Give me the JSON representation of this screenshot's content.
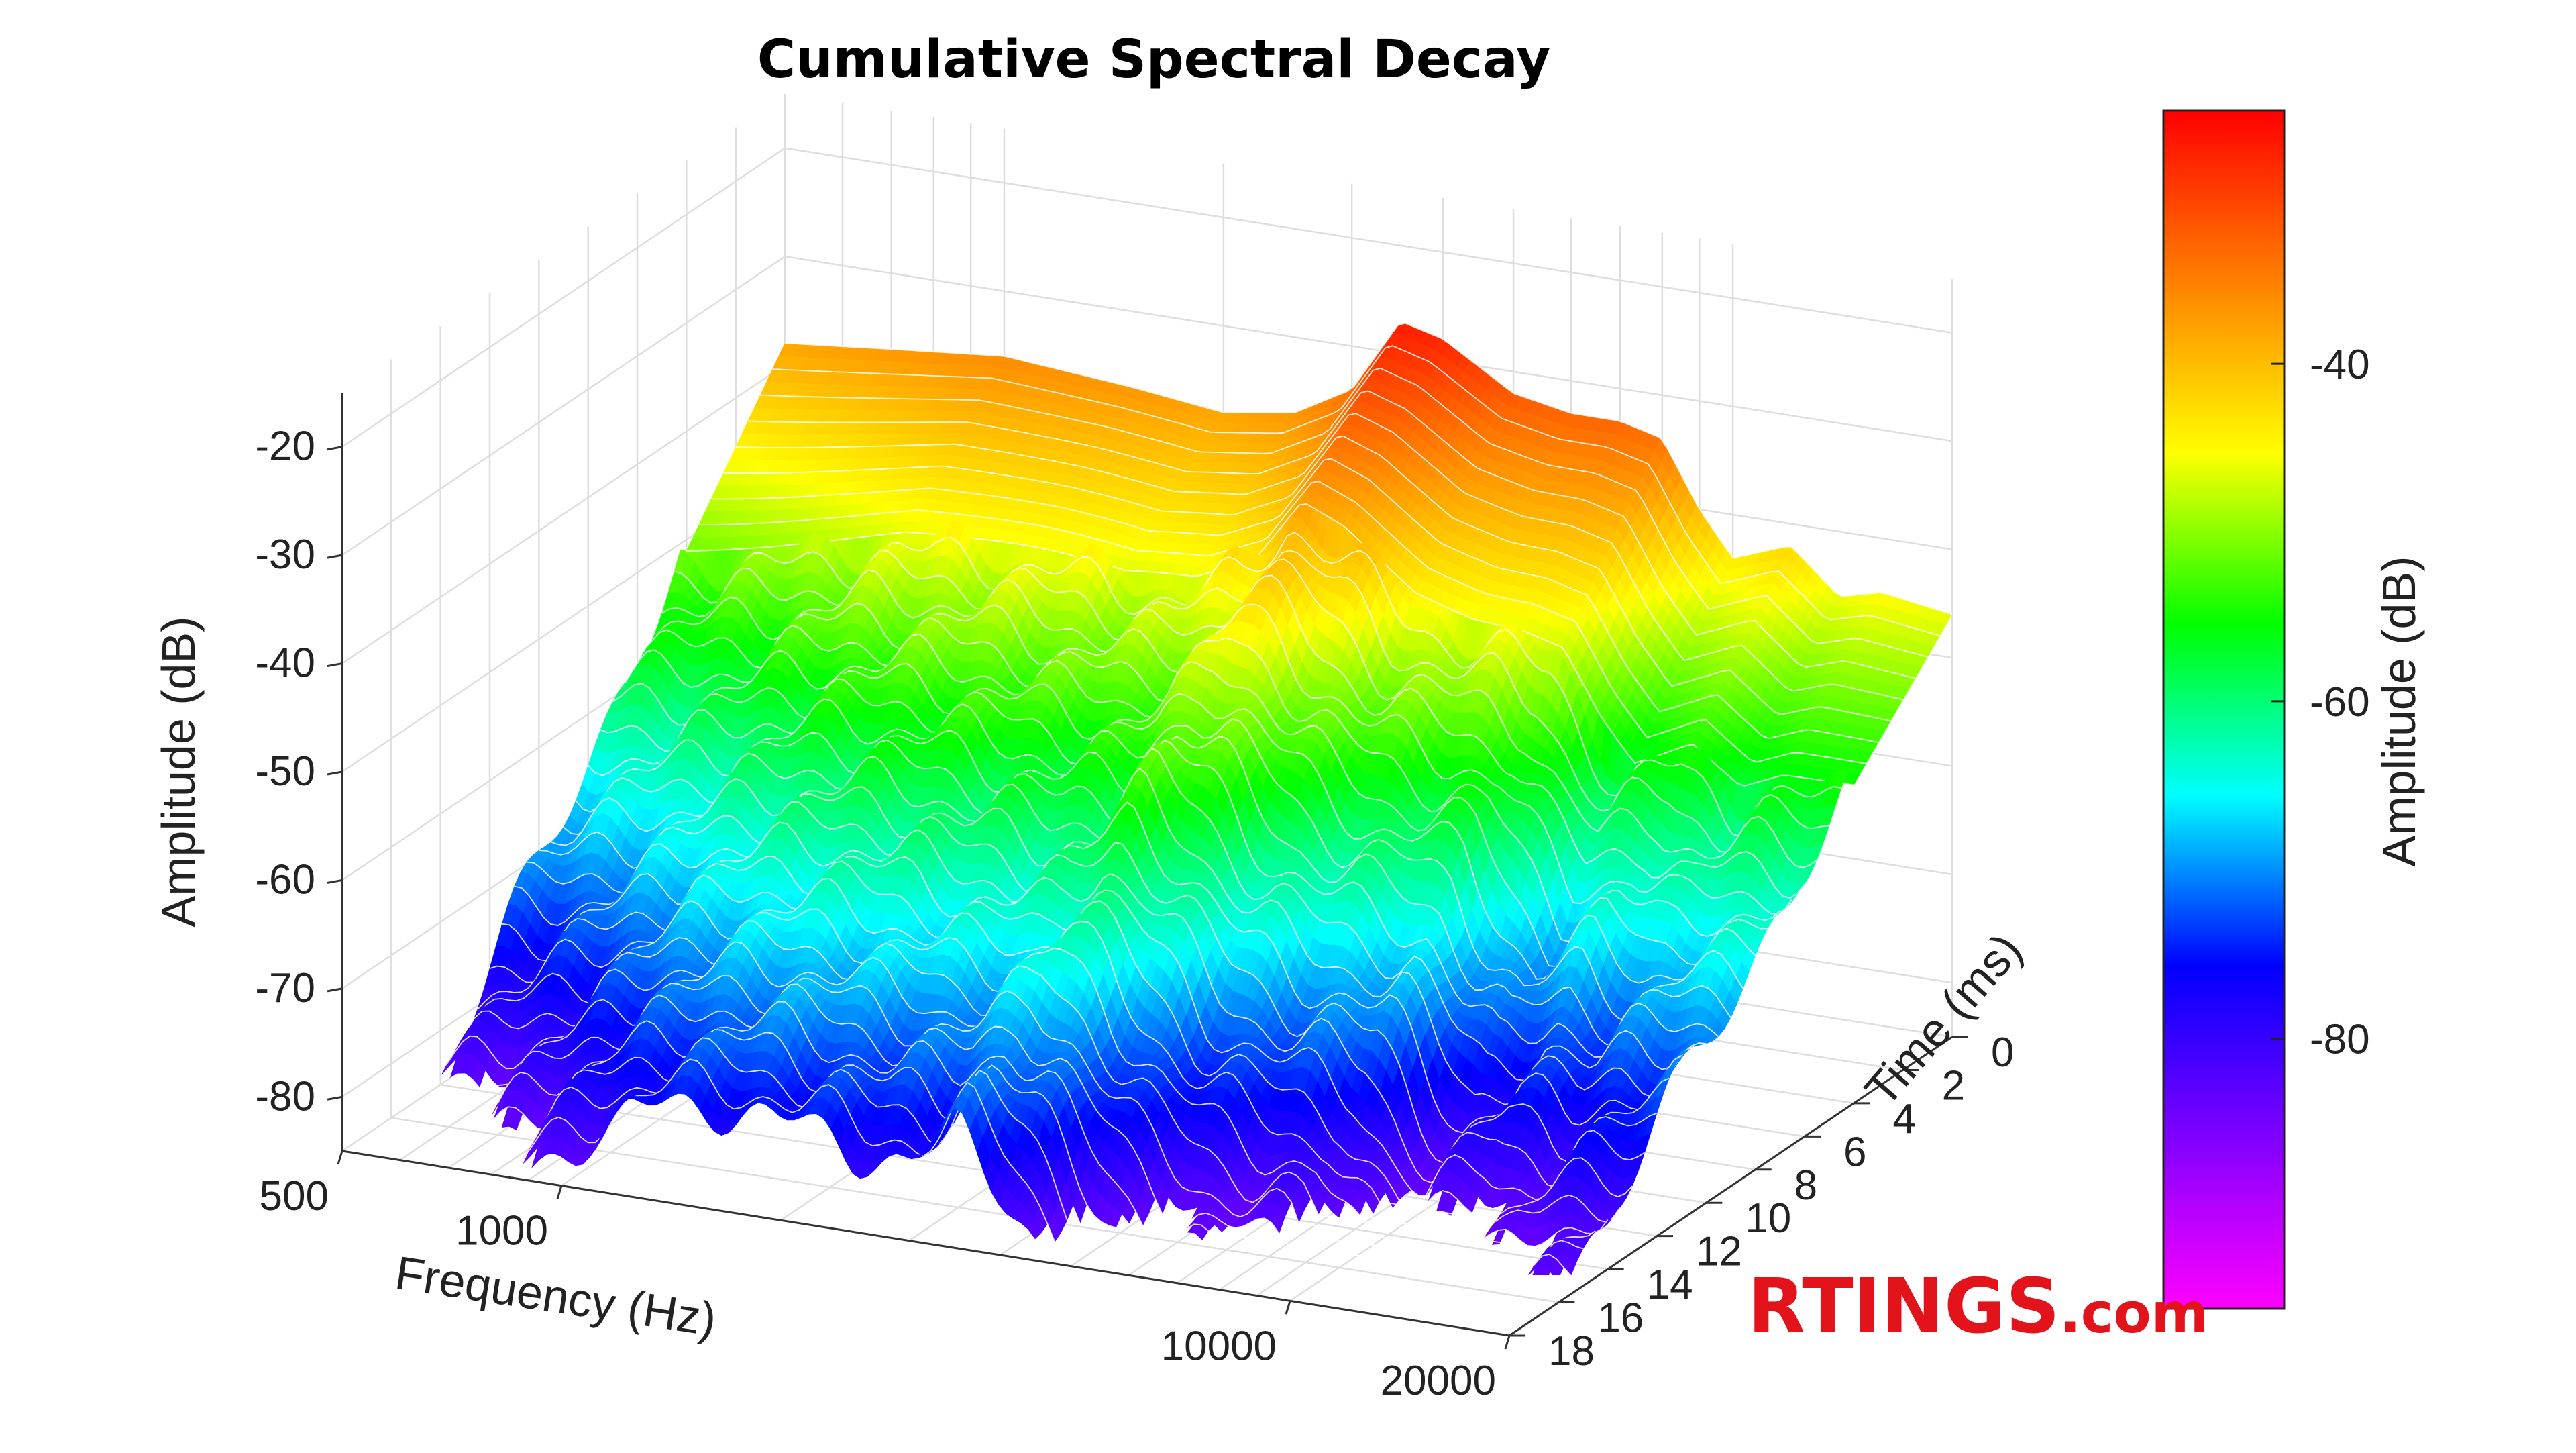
{
  "chart_data": {
    "type": "surface-3d",
    "title": "Cumulative Spectral Decay",
    "xlabel": "Frequency (Hz)",
    "ylabel": "Time (ms)",
    "zlabel": "Amplitude (dB)",
    "x_scale": "log",
    "xlim": [
      500,
      20000
    ],
    "ylim": [
      0,
      18
    ],
    "zlim": [
      -85,
      -15
    ],
    "x_ticks": [
      "500",
      "1000",
      "10000",
      "20000"
    ],
    "x_tick_values": [
      500,
      1000,
      10000,
      20000
    ],
    "y_ticks": [
      "0",
      "2",
      "4",
      "6",
      "8",
      "10",
      "12",
      "14",
      "16",
      "18"
    ],
    "y_tick_values": [
      0,
      2,
      4,
      6,
      8,
      10,
      12,
      14,
      16,
      18
    ],
    "z_ticks": [
      "-20",
      "-30",
      "-40",
      "-50",
      "-60",
      "-70",
      "-80"
    ],
    "z_tick_values": [
      -20,
      -30,
      -40,
      -50,
      -60,
      -70,
      -80
    ],
    "grid": true,
    "colorbar": {
      "label": "Amplitude (dB)",
      "ticks": [
        "-40",
        "-60",
        "-80"
      ],
      "tick_values": [
        -40,
        -60,
        -80
      ],
      "range": [
        -96,
        -25
      ],
      "colormap": [
        "#ff00ff",
        "#8000ff",
        "#0000ff",
        "#00ffff",
        "#00ff00",
        "#ffff00",
        "#ff8000",
        "#ff0000"
      ]
    },
    "initial_response_db": {
      "frequency_hz": [
        500,
        700,
        1000,
        1500,
        2000,
        2500,
        3000,
        3500,
        4000,
        5000,
        6000,
        7000,
        8000,
        9000,
        10000,
        12000,
        14000,
        16000,
        20000
      ],
      "amplitude_db": [
        -38,
        -37,
        -36,
        -37,
        -38,
        -37,
        -34,
        -27,
        -28,
        -32,
        -33,
        -33,
        -34,
        -40,
        -44,
        -42,
        -46,
        -45,
        -46
      ]
    },
    "decay_rate_db_per_ms": 3
  },
  "watermark": {
    "brand": "RTINGS",
    "suffix": ".com"
  }
}
